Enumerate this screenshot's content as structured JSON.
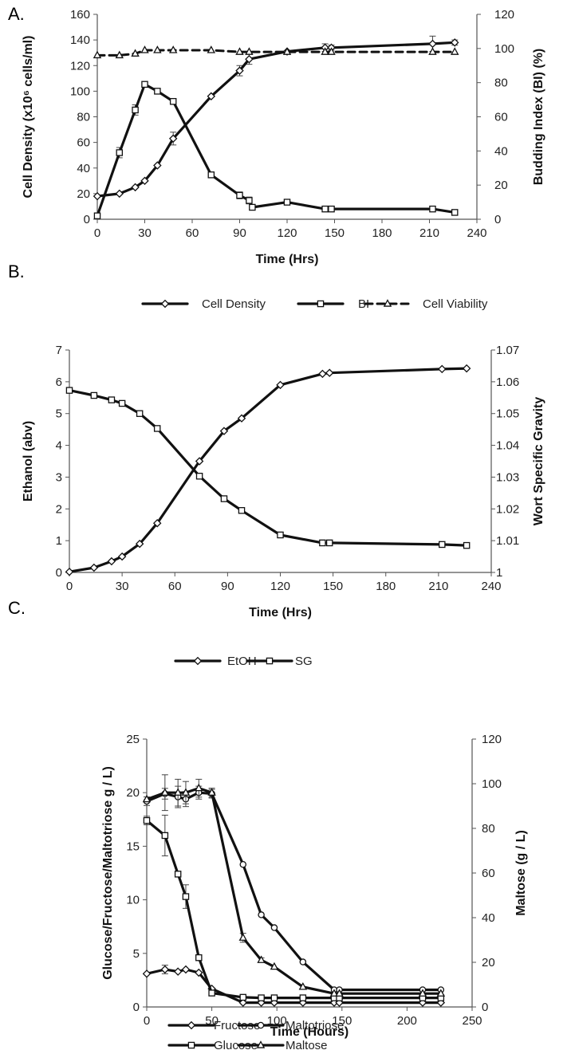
{
  "chart_data": [
    {
      "panel_label": "A.",
      "type": "line",
      "xlabel": "Time (Hrs)",
      "ylabel": "Cell Density (x10⁶ cells/ml)",
      "ylabel_right": "Budding Index (BI) (%)",
      "xlim": [
        0,
        240
      ],
      "ylim": [
        0,
        160
      ],
      "ylim_right": [
        0,
        120
      ],
      "xticks": [
        "0",
        "30",
        "60",
        "90",
        "120",
        "150",
        "180",
        "210",
        "240"
      ],
      "yticks": [
        "0",
        "20",
        "40",
        "60",
        "80",
        "100",
        "120",
        "140",
        "160"
      ],
      "yticks_right": [
        "0",
        "20",
        "40",
        "60",
        "80",
        "100",
        "120"
      ],
      "grid": false,
      "legend_position": "bottom",
      "series": [
        {
          "name": "Cell Density",
          "axis": "left",
          "marker": "diamond",
          "style": "solid",
          "x": [
            0,
            14,
            24,
            30,
            38,
            48,
            72,
            90,
            96,
            120,
            144,
            148,
            212,
            226
          ],
          "y": [
            18,
            20,
            25,
            30,
            42,
            63,
            96,
            116,
            125,
            131,
            134,
            134,
            137,
            138
          ],
          "err": [
            0,
            0,
            0,
            0,
            0,
            5,
            0,
            4,
            4,
            0,
            3,
            2,
            6,
            2
          ]
        },
        {
          "name": "BI",
          "axis": "right",
          "marker": "square",
          "style": "solid",
          "x": [
            0,
            14,
            24,
            30,
            38,
            48,
            72,
            90,
            96,
            98,
            120,
            144,
            148,
            212,
            226
          ],
          "y": [
            2,
            39,
            64,
            79,
            75,
            69,
            26,
            14,
            11,
            7,
            10,
            6,
            6,
            6,
            4
          ],
          "err": [
            0,
            3,
            3,
            0,
            0,
            0,
            0,
            2,
            2,
            0,
            0,
            0,
            0,
            0,
            0
          ]
        },
        {
          "name": "Cell Viability",
          "axis": "right",
          "marker": "triangle",
          "style": "dashed",
          "x": [
            0,
            14,
            24,
            30,
            38,
            48,
            72,
            90,
            96,
            120,
            144,
            148,
            212,
            226
          ],
          "y": [
            96,
            96,
            97,
            99,
            99,
            99,
            99,
            98,
            98,
            98,
            98,
            98,
            98,
            98
          ],
          "err": [
            0,
            0,
            0,
            0,
            0,
            0,
            0,
            0,
            0,
            0,
            0,
            0,
            0,
            0
          ]
        }
      ]
    },
    {
      "panel_label": "B.",
      "type": "line",
      "xlabel": "Time (Hrs)",
      "ylabel": "Ethanol (abv)",
      "ylabel_right": "Wort Specific Gravity",
      "xlim": [
        0,
        240
      ],
      "ylim": [
        0,
        7
      ],
      "ylim_right": [
        1,
        1.07
      ],
      "xticks": [
        "0",
        "30",
        "60",
        "90",
        "120",
        "150",
        "180",
        "210",
        "240"
      ],
      "yticks": [
        "0",
        "1",
        "2",
        "3",
        "4",
        "5",
        "6",
        "7"
      ],
      "yticks_right": [
        "1",
        "1.01",
        "1.02",
        "1.03",
        "1.04",
        "1.05",
        "1.06",
        "1.07"
      ],
      "grid": false,
      "legend_position": "bottom",
      "series": [
        {
          "name": "EtOH",
          "axis": "left",
          "marker": "diamond",
          "style": "solid",
          "x": [
            0,
            14,
            24,
            30,
            40,
            50,
            74,
            88,
            98,
            120,
            144,
            148,
            212,
            226
          ],
          "y": [
            0.02,
            0.15,
            0.35,
            0.5,
            0.9,
            1.55,
            3.5,
            4.45,
            4.85,
            5.9,
            6.25,
            6.28,
            6.4,
            6.42
          ],
          "err": [
            0,
            0,
            0,
            0,
            0,
            0,
            0,
            0,
            0,
            0,
            0,
            0,
            0,
            0
          ]
        },
        {
          "name": "SG",
          "axis": "right",
          "marker": "square",
          "style": "solid",
          "x": [
            0,
            14,
            24,
            30,
            40,
            50,
            74,
            88,
            98,
            120,
            144,
            148,
            212,
            226
          ],
          "y": [
            1.0573,
            1.0557,
            1.0543,
            1.0532,
            1.05,
            1.0453,
            1.0303,
            1.0232,
            1.0195,
            1.0118,
            1.0093,
            1.0093,
            1.0088,
            1.0085
          ],
          "err": [
            0,
            0,
            0,
            0,
            0,
            0,
            0,
            0,
            0,
            0,
            0,
            0,
            0,
            0
          ]
        }
      ]
    },
    {
      "panel_label": "C.",
      "type": "line",
      "xlabel": "Time (Hours)",
      "ylabel": "Glucose/Fructose/Maltotriose g / L)",
      "ylabel_right": "Maltose (g / L)",
      "xlim": [
        0,
        250
      ],
      "ylim": [
        0,
        25
      ],
      "ylim_right": [
        0,
        120
      ],
      "xticks": [
        "0",
        "50",
        "100",
        "150",
        "200",
        "250"
      ],
      "yticks": [
        "0",
        "5",
        "10",
        "15",
        "20",
        "25"
      ],
      "yticks_right": [
        "0",
        "20",
        "40",
        "60",
        "80",
        "100",
        "120"
      ],
      "grid": false,
      "legend_position": "bottom",
      "series": [
        {
          "name": "Fructose",
          "axis": "left",
          "marker": "diamond",
          "style": "solid",
          "x": [
            0,
            14,
            24,
            30,
            40,
            50,
            74,
            88,
            98,
            120,
            144,
            148,
            212,
            226
          ],
          "y": [
            3.1,
            3.5,
            3.3,
            3.5,
            3.2,
            1.7,
            0.4,
            0.4,
            0.4,
            0.4,
            0.4,
            0.4,
            0.4,
            0.4
          ],
          "err": [
            0,
            0.4,
            0,
            0,
            0,
            0,
            0,
            0,
            0,
            0,
            0,
            0,
            0,
            0
          ]
        },
        {
          "name": "Maltotriose",
          "axis": "left",
          "marker": "circle",
          "style": "solid",
          "x": [
            0,
            14,
            24,
            30,
            40,
            50,
            74,
            88,
            98,
            120,
            144,
            148,
            212,
            226
          ],
          "y": [
            19.2,
            19.9,
            19.6,
            19.4,
            20,
            19.9,
            13.3,
            8.6,
            7.4,
            4.2,
            1.6,
            1.6,
            1.6,
            1.6
          ],
          "err": [
            0.4,
            0.5,
            1.0,
            0.7,
            0.6,
            0.4,
            0,
            0,
            0,
            0,
            0,
            0,
            0,
            0
          ]
        },
        {
          "name": "Glucose",
          "axis": "left",
          "marker": "square",
          "style": "solid",
          "x": [
            0,
            14,
            24,
            30,
            40,
            50,
            74,
            88,
            98,
            120,
            144,
            148,
            212,
            226
          ],
          "y": [
            17.4,
            16,
            12.4,
            10.3,
            4.6,
            1.3,
            0.9,
            0.85,
            0.85,
            0.85,
            0.85,
            0.85,
            0.85,
            0.85
          ],
          "err": [
            0.4,
            1.9,
            0,
            1.1,
            0,
            0,
            0,
            0,
            0,
            0,
            0,
            0,
            0,
            0
          ]
        },
        {
          "name": "Maltose",
          "axis": "right",
          "marker": "triangle",
          "style": "solid",
          "x": [
            0,
            14,
            24,
            30,
            40,
            50,
            74,
            88,
            98,
            120,
            144,
            148,
            212,
            226
          ],
          "y": [
            93,
            96,
            96,
            96,
            98,
            96,
            31,
            21,
            18,
            9,
            6,
            6,
            6,
            6
          ],
          "err": [
            0,
            8,
            6,
            5,
            4,
            2,
            2,
            1,
            0,
            0,
            0,
            0,
            0,
            0
          ]
        }
      ]
    }
  ]
}
